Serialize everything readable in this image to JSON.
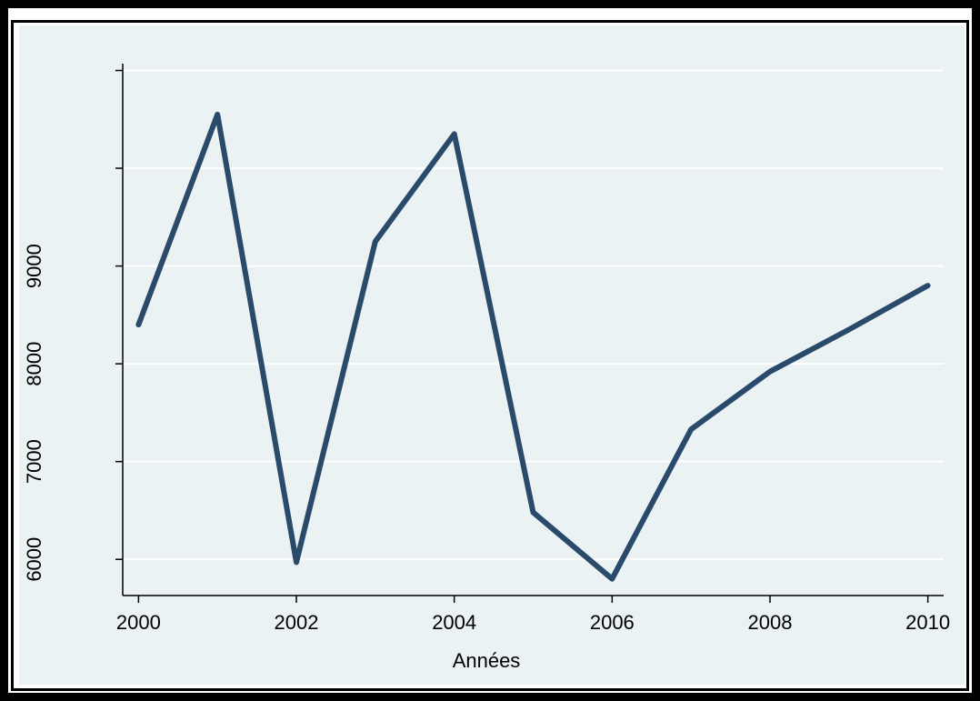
{
  "chart_data": {
    "type": "line",
    "title": "",
    "xlabel": "Années",
    "ylabel": "",
    "x": [
      2000,
      2001,
      2002,
      2003,
      2004,
      2005,
      2006,
      2007,
      2008,
      2009,
      2010
    ],
    "series": [
      {
        "values": [
          8400,
          10550,
          5970,
          9250,
          10350,
          6480,
          5800,
          7330,
          7920,
          8350,
          8800
        ],
        "color": "#2a4a6b"
      }
    ],
    "xlim": [
      1999.8,
      2010.2
    ],
    "ylim": [
      5630,
      11070
    ],
    "x_ticks": [
      2000,
      2002,
      2004,
      2006,
      2008,
      2010
    ],
    "y_ticks": [
      6000,
      7000,
      8000,
      9000
    ],
    "y_gridlines": [
      6000,
      7000,
      8000,
      9000,
      10000,
      11000
    ],
    "grid": true,
    "background_color": "#eaf2f3",
    "gridline_color": "#ffffff"
  }
}
